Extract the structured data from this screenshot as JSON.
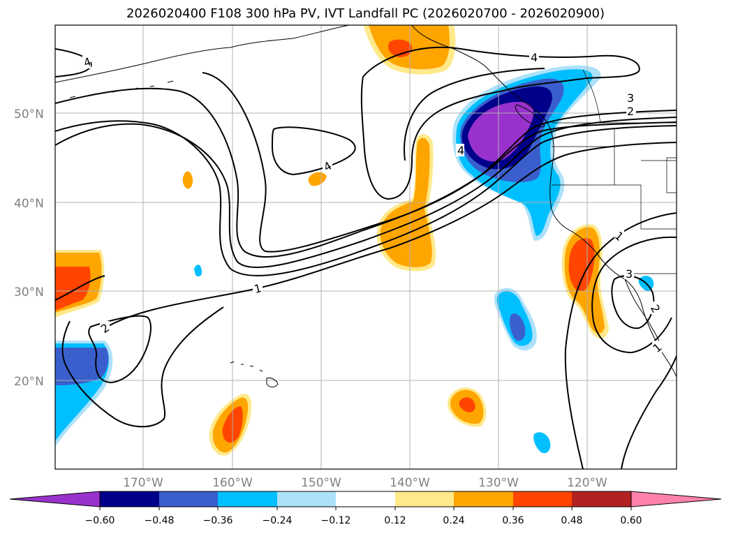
{
  "title": "2026020400 F108 300 hPa PV, IVT Landfall PC (2026020700 - 2026020900)",
  "latitude_labels": [
    "50°N",
    "40°N",
    "30°N",
    "20°N"
  ],
  "longitude_labels": [
    "170°W",
    "160°W",
    "150°W",
    "140°W",
    "130°W",
    "120°W"
  ],
  "pv_contour_labels": [
    "4",
    "4",
    "4",
    "4",
    "3",
    "2",
    "2",
    "1",
    "1",
    "1",
    "3",
    "2"
  ],
  "colorbar": {
    "tick_labels": [
      "−0.60",
      "−0.48",
      "−0.36",
      "−0.24",
      "−0.12",
      "0.12",
      "0.24",
      "0.36",
      "0.48",
      "0.60"
    ],
    "colors": [
      "#9932CC",
      "#00008B",
      "#3A5FCD",
      "#00BFFF",
      "#ADE1FA",
      "#FFFFFF",
      "#FFE98A",
      "#FFA500",
      "#FF4500",
      "#B22222",
      "#FF82AB"
    ]
  },
  "fill_colors": {
    "neg_strong": "#9932CC",
    "neg_dark": "#00008B",
    "neg_mid": "#3A5FCD",
    "neg_light": "#00BFFF",
    "neg_pale": "#ADE1FA",
    "pos_pale": "#FFE98A",
    "pos_mid": "#FFA500",
    "pos_strong": "#FF4500"
  }
}
